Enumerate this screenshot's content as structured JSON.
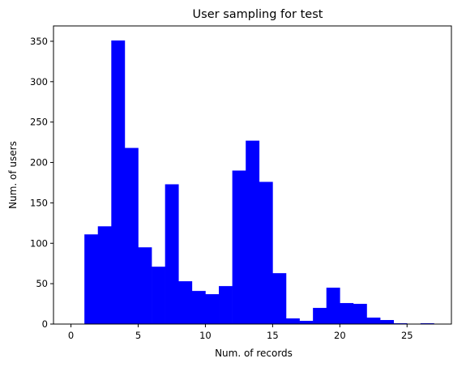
{
  "chart_data": {
    "type": "bar",
    "title": "User sampling for test",
    "xlabel": "Num. of records",
    "ylabel": "Num. of users",
    "xlim": [
      -1.3,
      28.3
    ],
    "ylim": [
      0,
      369
    ],
    "xticks": [
      0,
      5,
      10,
      15,
      20,
      25
    ],
    "yticks": [
      0,
      50,
      100,
      150,
      200,
      250,
      300,
      350
    ],
    "bar_color": "#0000ff",
    "bin_edges": [
      1,
      2,
      3,
      4,
      5,
      6,
      7,
      8,
      9,
      10,
      11,
      12,
      13,
      14,
      15,
      16,
      17,
      18,
      19,
      20,
      21,
      22,
      23,
      24,
      25,
      26,
      27
    ],
    "values": [
      111,
      121,
      351,
      218,
      95,
      71,
      173,
      53,
      41,
      37,
      47,
      190,
      227,
      176,
      63,
      7,
      4,
      20,
      45,
      26,
      25,
      8,
      5,
      1,
      0,
      1
    ],
    "grid": false,
    "legend": "none"
  }
}
